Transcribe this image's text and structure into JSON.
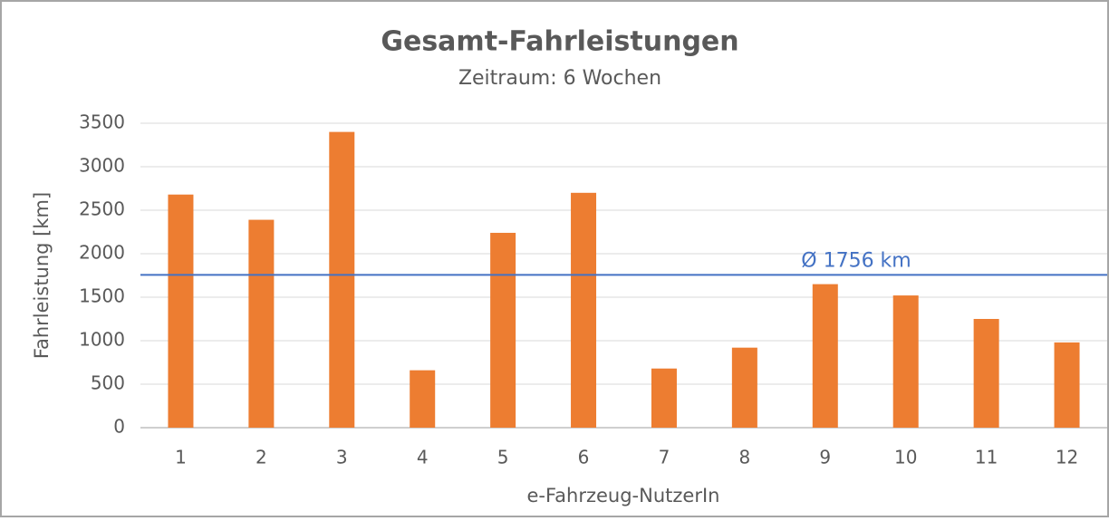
{
  "chart_data": {
    "type": "bar",
    "title": "Gesamt-Fahrleistungen",
    "subtitle": "Zeitraum: 6 Wochen",
    "x_label": "e-Fahrzeug-NutzerIn",
    "y_label": "Fahrleistung [km]",
    "categories": [
      "1",
      "2",
      "3",
      "4",
      "5",
      "6",
      "7",
      "8",
      "9",
      "10",
      "11",
      "12"
    ],
    "values": [
      2680,
      2390,
      3400,
      660,
      2240,
      2700,
      680,
      920,
      1650,
      1520,
      1250,
      980
    ],
    "color": "#ed7d31",
    "ylim": [
      0,
      3500
    ],
    "yticks": [
      0,
      500,
      1000,
      1500,
      2000,
      2500,
      3000,
      3500
    ],
    "grid": true,
    "reference_line": {
      "value": 1756,
      "label": "Ø 1756 km",
      "color": "#4472c4"
    }
  }
}
